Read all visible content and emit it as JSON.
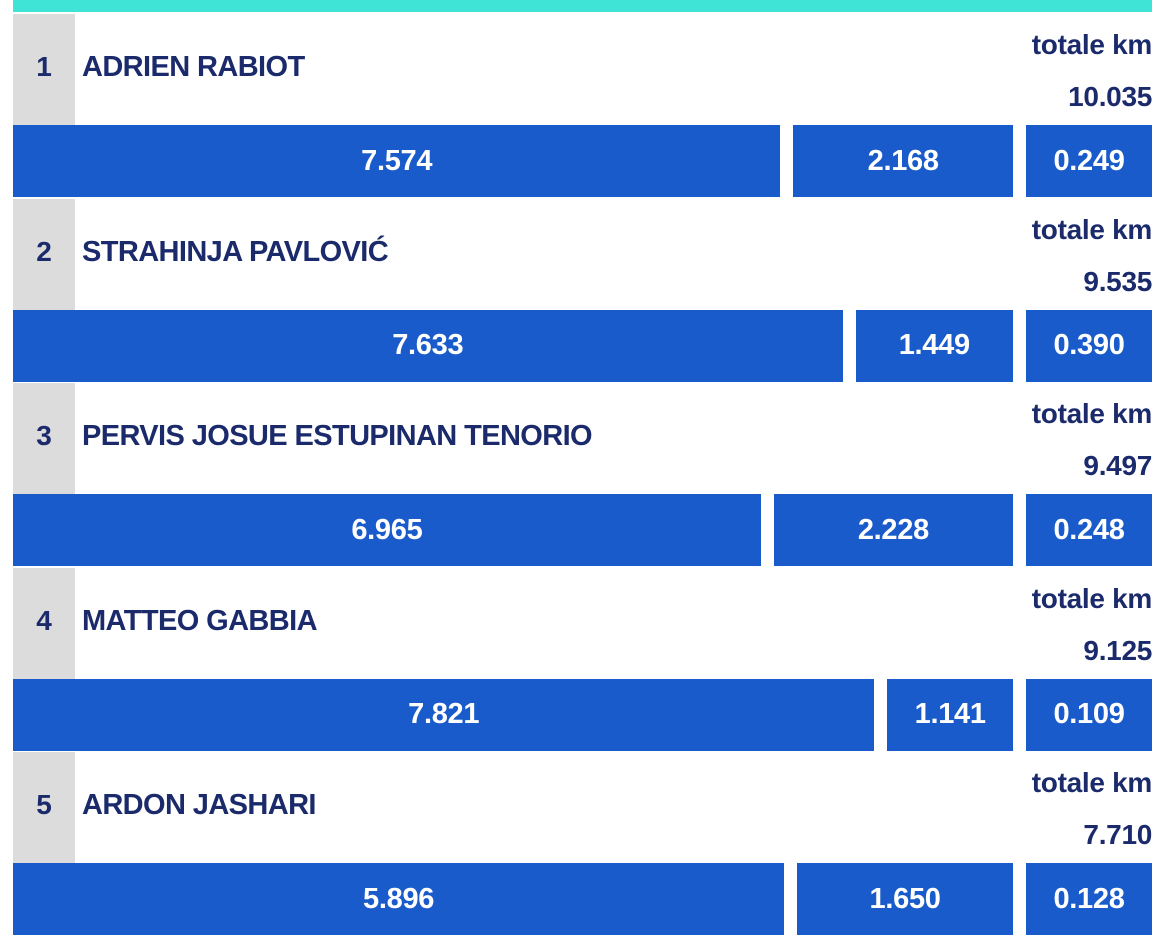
{
  "players": [
    {
      "rank": "1",
      "name": "ADRIEN RABIOT",
      "total_label": "totale km",
      "total": "10.035",
      "segments": [
        "7.574",
        "2.168",
        "0.249"
      ]
    },
    {
      "rank": "2",
      "name": "STRAHINJA PAVLOVIĆ",
      "total_label": "totale km",
      "total": "9.535",
      "segments": [
        "7.633",
        "1.449",
        "0.390"
      ]
    },
    {
      "rank": "3",
      "name": "PERVIS JOSUE ESTUPINAN TENORIO",
      "total_label": "totale km",
      "total": "9.497",
      "segments": [
        "6.965",
        "2.228",
        "0.248"
      ]
    },
    {
      "rank": "4",
      "name": "MATTEO GABBIA",
      "total_label": "totale km",
      "total": "9.125",
      "segments": [
        "7.821",
        "1.141",
        "0.109"
      ]
    },
    {
      "rank": "5",
      "name": "ARDON JASHARI",
      "total_label": "totale km",
      "total": "7.710",
      "segments": [
        "5.896",
        "1.650",
        "0.128"
      ]
    }
  ]
}
